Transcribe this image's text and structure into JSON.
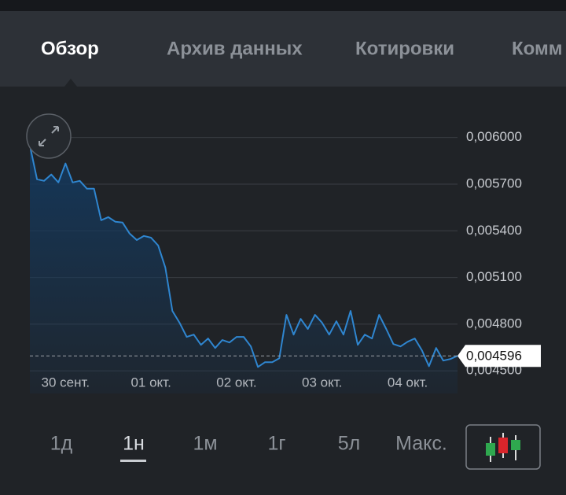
{
  "tabs": [
    "Обзор",
    "Архив данных",
    "Котировки",
    "Комм"
  ],
  "chart_data": {
    "type": "line",
    "categories": [
      null,
      null,
      null,
      null,
      null,
      "30 сент.",
      null,
      null,
      null,
      null,
      null,
      null,
      null,
      null,
      null,
      null,
      null,
      "01 окт.",
      null,
      null,
      null,
      null,
      null,
      null,
      null,
      null,
      null,
      null,
      null,
      "02 окт.",
      null,
      null,
      null,
      null,
      null,
      null,
      null,
      null,
      null,
      null,
      null,
      "03 окт.",
      null,
      null,
      null,
      null,
      null,
      null,
      null,
      null,
      null,
      null,
      null,
      "04 окт.",
      null,
      null,
      null,
      null,
      null,
      null,
      null
    ],
    "values": [
      0.005949,
      0.005731,
      0.005721,
      0.005762,
      0.005711,
      0.005833,
      0.005711,
      0.005721,
      0.005671,
      0.005671,
      0.005468,
      0.005488,
      0.005458,
      0.005453,
      0.005382,
      0.005341,
      0.005367,
      0.005356,
      0.005306,
      0.005164,
      0.004885,
      0.004809,
      0.004718,
      0.004733,
      0.004667,
      0.004708,
      0.004647,
      0.004698,
      0.004682,
      0.004718,
      0.004718,
      0.004657,
      0.004525,
      0.004556,
      0.004556,
      0.004581,
      0.00486,
      0.004733,
      0.004834,
      0.004769,
      0.00486,
      0.004809,
      0.004733,
      0.004819,
      0.004733,
      0.004885,
      0.004667,
      0.004733,
      0.004708,
      0.00486,
      0.004769,
      0.004672,
      0.004657,
      0.004687,
      0.004708,
      0.004632,
      0.00453,
      0.004647,
      0.004566,
      0.004576,
      0.004596
    ],
    "value_labels": [
      null,
      null,
      null,
      null,
      null,
      null,
      null,
      null,
      null,
      null,
      null,
      null,
      null,
      null,
      null,
      null,
      null,
      null,
      null,
      null,
      null,
      null,
      null,
      null,
      null,
      null,
      null,
      null,
      null,
      null,
      null,
      null,
      null,
      null,
      null,
      null,
      null,
      null,
      null,
      null,
      null,
      null,
      null,
      null,
      null,
      null,
      null,
      null,
      null,
      null,
      null,
      null,
      null,
      null,
      null,
      null,
      null,
      null,
      null,
      null,
      "0,004596"
    ],
    "color": "#2f86d0",
    "ylim": [
      0.0044,
      0.00615
    ],
    "yticks": [
      {
        "value": 0.0045,
        "label": "0,004500"
      },
      {
        "value": 0.0048,
        "label": "0,004800"
      },
      {
        "value": 0.0051,
        "label": "0,005100"
      },
      {
        "value": 0.0054,
        "label": "0,005400"
      },
      {
        "value": 0.0057,
        "label": "0,005700"
      },
      {
        "value": 0.006,
        "label": "0,006000"
      }
    ],
    "grid": true
  },
  "ranges": [
    "1д",
    "1н",
    "1м",
    "1г",
    "5л",
    "Макс."
  ]
}
